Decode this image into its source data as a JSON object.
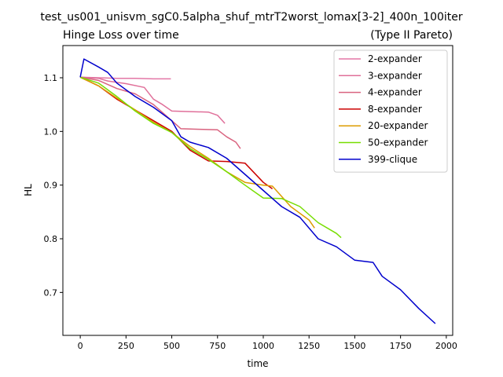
{
  "figure_title": "test_us001_unisvm_sgC0.5alpha_shuf_mtrT2worst_lomax[3-2]_400n_100iter",
  "chart_data": {
    "type": "line",
    "title": "Hinge Loss over time",
    "subtitle": "(Type II Pareto)",
    "xlabel": "time",
    "ylabel": "HL",
    "xlim": [
      -95,
      2035
    ],
    "ylim": [
      0.62,
      1.16
    ],
    "xticks": [
      0,
      250,
      500,
      750,
      1000,
      1250,
      1500,
      1750,
      2000
    ],
    "yticks": [
      0.7,
      0.8,
      0.9,
      1.0,
      1.1
    ],
    "grid": false,
    "legend_position": "top-right",
    "series": [
      {
        "name": "2-expander",
        "color": "#e377a6",
        "x": [
          0,
          100,
          200,
          300,
          400,
          495
        ],
        "y": [
          1.101,
          1.1,
          1.099,
          1.099,
          1.098,
          1.098
        ]
      },
      {
        "name": "3-expander",
        "color": "#e0709a",
        "x": [
          0,
          100,
          150,
          250,
          350,
          400,
          450,
          500,
          600,
          700,
          750,
          790
        ],
        "y": [
          1.101,
          1.099,
          1.094,
          1.089,
          1.082,
          1.06,
          1.05,
          1.038,
          1.037,
          1.036,
          1.03,
          1.015
        ]
      },
      {
        "name": "4-expander",
        "color": "#d9637f",
        "x": [
          0,
          100,
          200,
          300,
          400,
          500,
          550,
          650,
          750,
          800,
          850,
          875
        ],
        "y": [
          1.101,
          1.095,
          1.08,
          1.07,
          1.05,
          1.02,
          1.005,
          1.004,
          1.003,
          0.99,
          0.98,
          0.968
        ]
      },
      {
        "name": "8-expander",
        "color": "#cc0000",
        "x": [
          0,
          100,
          200,
          300,
          400,
          500,
          600,
          700,
          800,
          900,
          1000,
          1050
        ],
        "y": [
          1.101,
          1.085,
          1.06,
          1.04,
          1.02,
          1.0,
          0.965,
          0.945,
          0.944,
          0.941,
          0.905,
          0.893
        ]
      },
      {
        "name": "20-expander",
        "color": "#dd9c00",
        "x": [
          0,
          100,
          200,
          300,
          400,
          500,
          600,
          700,
          800,
          900,
          1000,
          1050,
          1150,
          1250,
          1280
        ],
        "y": [
          1.101,
          1.085,
          1.062,
          1.04,
          1.017,
          0.998,
          0.972,
          0.95,
          0.925,
          0.905,
          0.9,
          0.898,
          0.86,
          0.835,
          0.82
        ]
      },
      {
        "name": "50-expander",
        "color": "#77dd00",
        "x": [
          0,
          100,
          200,
          300,
          400,
          500,
          600,
          700,
          800,
          900,
          1000,
          1100,
          1200,
          1300,
          1400,
          1425
        ],
        "y": [
          1.101,
          1.09,
          1.065,
          1.038,
          1.015,
          0.998,
          0.968,
          0.948,
          0.925,
          0.9,
          0.876,
          0.875,
          0.86,
          0.83,
          0.81,
          0.802
        ]
      },
      {
        "name": "399-clique",
        "color": "#0000cc",
        "x": [
          0,
          20,
          100,
          150,
          200,
          300,
          400,
          500,
          550,
          600,
          700,
          800,
          900,
          1000,
          1100,
          1200,
          1300,
          1400,
          1500,
          1600,
          1650,
          1750,
          1850,
          1940
        ],
        "y": [
          1.101,
          1.135,
          1.12,
          1.11,
          1.09,
          1.065,
          1.045,
          1.02,
          0.99,
          0.98,
          0.97,
          0.95,
          0.92,
          0.89,
          0.86,
          0.84,
          0.8,
          0.785,
          0.76,
          0.756,
          0.73,
          0.705,
          0.67,
          0.642
        ]
      }
    ]
  }
}
